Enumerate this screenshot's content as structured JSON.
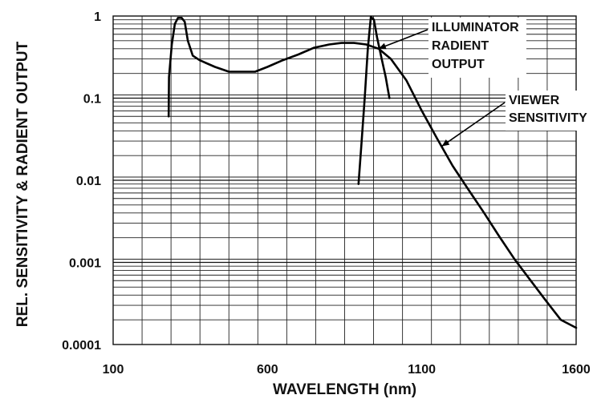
{
  "chart_data": {
    "type": "line",
    "title": "",
    "xlabel": "WAVELENGTH (nm)",
    "ylabel": "REL. SENSITIVITY & RADIENT OUTPUT",
    "xlim": [
      100,
      1600
    ],
    "ylim": [
      0.0001,
      1
    ],
    "yscale": "log",
    "grid": true,
    "x_ticks": [
      {
        "value": 100,
        "label": "100"
      },
      {
        "value": 600,
        "label": "600"
      },
      {
        "value": 1100,
        "label": "1100"
      },
      {
        "value": 1600,
        "label": "1600"
      }
    ],
    "y_ticks": [
      {
        "value": 1,
        "label": "1"
      },
      {
        "value": 0.1,
        "label": "0.1"
      },
      {
        "value": 0.01,
        "label": "0.01"
      },
      {
        "value": 0.001,
        "label": "0.001"
      },
      {
        "value": 0.0001,
        "label": "0.0001"
      }
    ],
    "series": [
      {
        "id": "viewer",
        "points": [
          [
            280,
            0.06
          ],
          [
            281,
            0.18
          ],
          [
            290,
            0.45
          ],
          [
            300,
            0.8
          ],
          [
            310,
            0.95
          ],
          [
            322,
            0.95
          ],
          [
            332,
            0.85
          ],
          [
            342,
            0.5
          ],
          [
            358,
            0.33
          ],
          [
            380,
            0.29
          ],
          [
            430,
            0.24
          ],
          [
            475,
            0.21
          ],
          [
            520,
            0.21
          ],
          [
            560,
            0.21
          ],
          [
            600,
            0.24
          ],
          [
            650,
            0.29
          ],
          [
            700,
            0.34
          ],
          [
            750,
            0.41
          ],
          [
            800,
            0.45
          ],
          [
            840,
            0.47
          ],
          [
            880,
            0.47
          ],
          [
            920,
            0.45
          ],
          [
            960,
            0.4
          ],
          [
            1000,
            0.3
          ],
          [
            1050,
            0.165
          ],
          [
            1100,
            0.07
          ],
          [
            1150,
            0.032
          ],
          [
            1200,
            0.015
          ],
          [
            1250,
            0.0078
          ],
          [
            1300,
            0.0041
          ],
          [
            1350,
            0.0021
          ],
          [
            1400,
            0.0011
          ],
          [
            1450,
            0.00062
          ],
          [
            1500,
            0.00035
          ],
          [
            1550,
            0.0002
          ],
          [
            1600,
            0.00016
          ]
        ]
      },
      {
        "id": "illuminator",
        "points": [
          [
            895,
            0.009
          ],
          [
            905,
            0.03
          ],
          [
            915,
            0.1
          ],
          [
            925,
            0.4
          ],
          [
            935,
            0.98
          ],
          [
            945,
            0.9
          ],
          [
            955,
            0.55
          ],
          [
            970,
            0.3
          ],
          [
            983,
            0.18
          ],
          [
            995,
            0.1
          ]
        ]
      }
    ],
    "annotations": [
      {
        "id": "illuminator",
        "lines": [
          "ILLUMINATOR",
          "RADIENT",
          "OUTPUT"
        ],
        "points_to": [
          960,
          0.4
        ]
      },
      {
        "id": "viewer",
        "lines": [
          "VIEWER",
          "SENSITIVITY"
        ],
        "points_to": [
          1165,
          0.026
        ]
      }
    ]
  }
}
